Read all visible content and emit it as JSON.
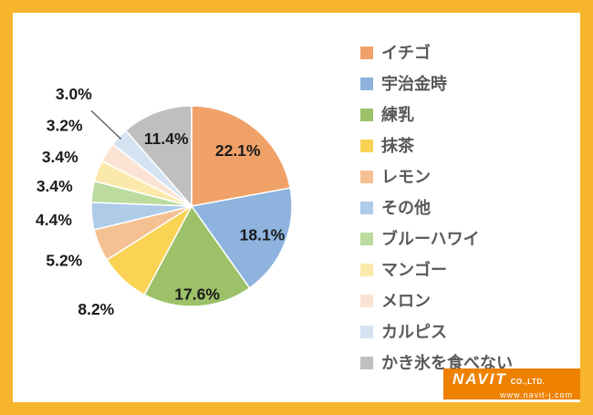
{
  "frame": {
    "border_color": "#F7B52C",
    "background": "#FFFFFF"
  },
  "chart_data": {
    "type": "pie",
    "title": "",
    "unit": "%",
    "direction": "clockwise",
    "start_angle_deg": 0,
    "legend_position": "right",
    "slices": [
      {
        "label": "イチゴ",
        "value": 22.1,
        "display": "22.1%",
        "color": "#F0A168",
        "label_inside": true,
        "label_r": 0.72
      },
      {
        "label": "宇治金時",
        "value": 18.1,
        "display": "18.1%",
        "color": "#8DB3DE",
        "label_inside": true,
        "label_r": 0.76
      },
      {
        "label": "練乳",
        "value": 17.6,
        "display": "17.6%",
        "color": "#9CC169",
        "label_inside": true,
        "label_r": 0.88
      },
      {
        "label": "抹茶",
        "value": 8.2,
        "display": "8.2%",
        "color": "#FAD355",
        "label_inside": false,
        "label_r": 1.4
      },
      {
        "label": "レモン",
        "value": 5.2,
        "display": "5.2%",
        "color": "#F5C193",
        "label_inside": false,
        "label_r": 1.38
      },
      {
        "label": "その他",
        "value": 4.4,
        "display": "4.4%",
        "color": "#AECBE8",
        "label_inside": false,
        "label_r": 1.38
      },
      {
        "label": "ブルーハワイ",
        "value": 3.4,
        "display": "3.4%",
        "color": "#BCDB9E",
        "label_inside": false,
        "label_r": 1.38
      },
      {
        "label": "マンゴー",
        "value": 3.4,
        "display": "3.4%",
        "color": "#FBE9AC",
        "label_inside": false,
        "label_r": 1.4
      },
      {
        "label": "メロン",
        "value": 3.2,
        "display": "3.2%",
        "color": "#FAE3D3",
        "label_inside": false,
        "label_r": 1.5
      },
      {
        "label": "カルピス",
        "value": 3.0,
        "display": "3.0%",
        "color": "#D4E3F2",
        "label_inside": false,
        "label_r": 1.62,
        "leader": true
      },
      {
        "label": "かき氷を食べない",
        "value": 11.4,
        "display": "11.4%",
        "color": "#BFBFBF",
        "label_inside": true,
        "label_r": 0.72
      }
    ]
  },
  "footer": {
    "brand": "NAVIT",
    "brand_suffix": "CO.,LTD.",
    "url": "www.navit-j.com",
    "background": "#EE8100"
  }
}
